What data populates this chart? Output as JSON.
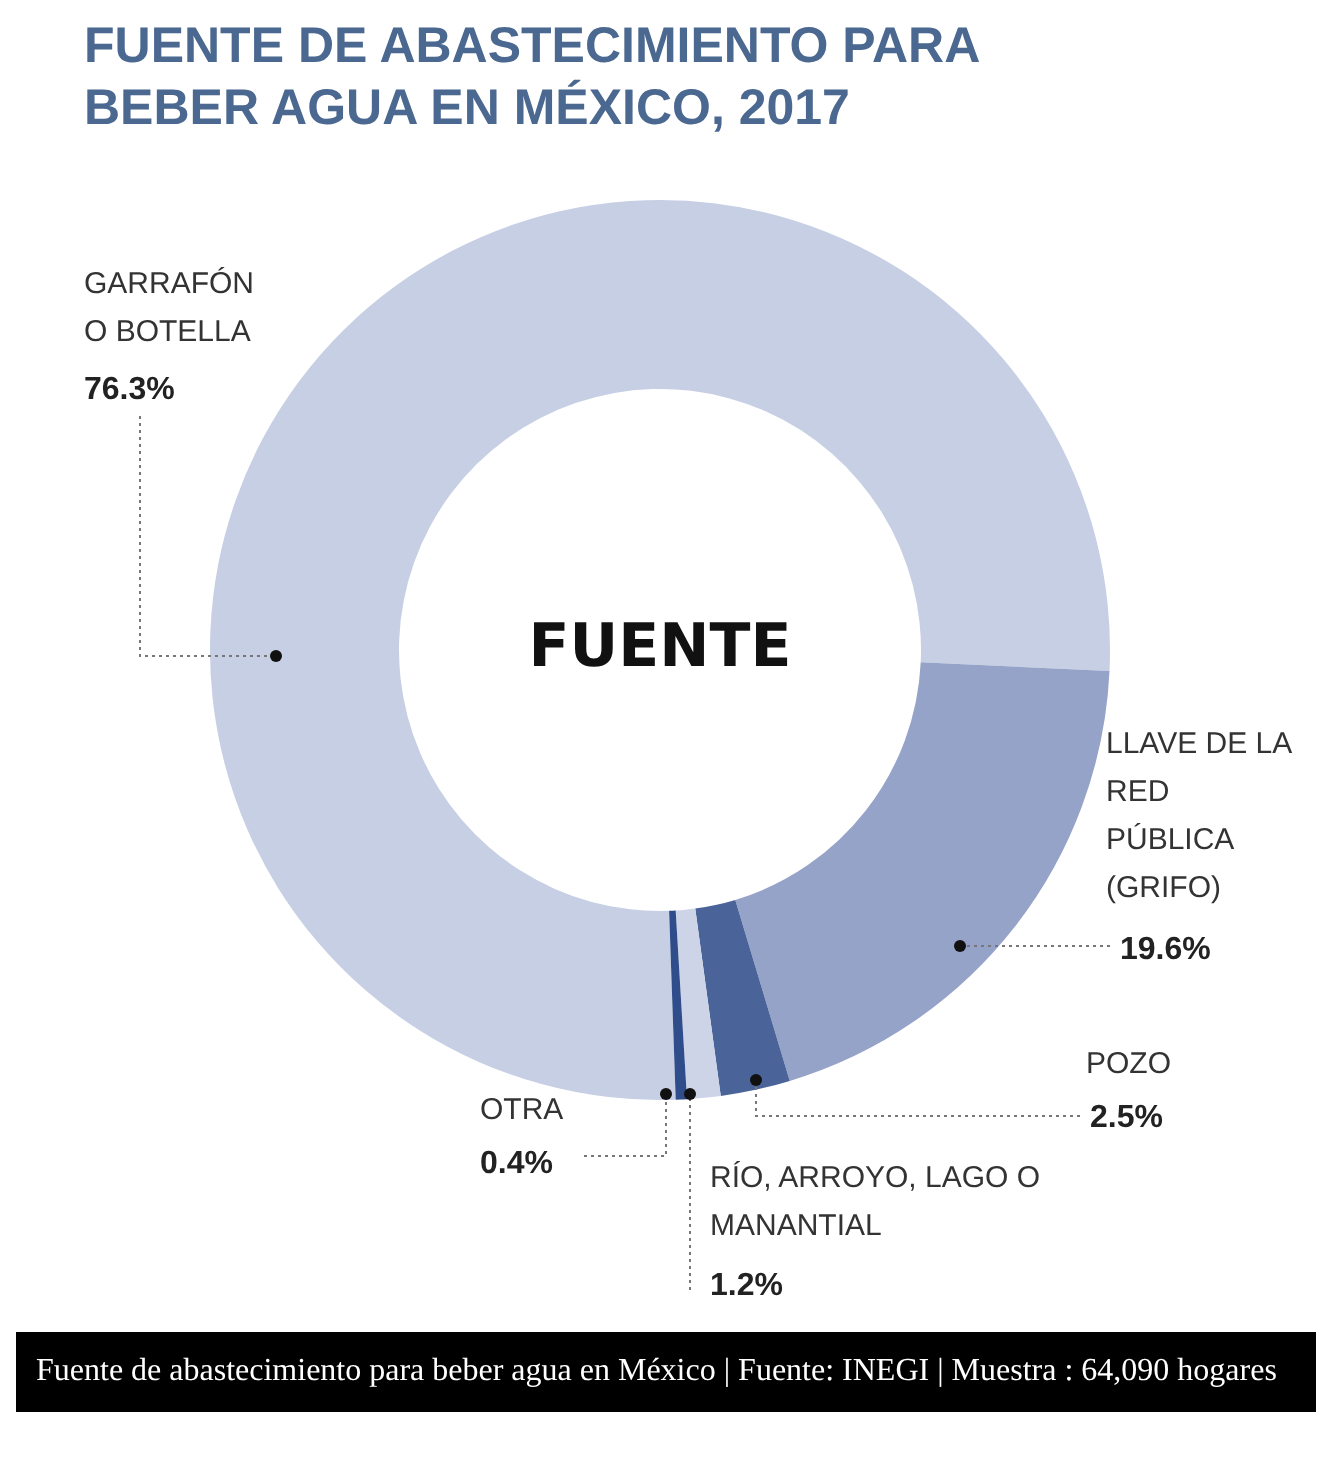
{
  "chart_data": {
    "type": "donut",
    "title": "FUENTE DE ABASTECIMIENTO PARA BEBER AGUA EN MÉXICO, 2017",
    "categories": [
      "GARRAFÓN O BOTELLA",
      "LLAVE DE LA RED PÚBLICA (GRIFO)",
      "POZO",
      "RÍO, ARROYO, LAGO O MANANTIAL",
      "OTRA"
    ],
    "values": [
      76.3,
      19.6,
      2.5,
      1.2,
      0.4
    ],
    "colors": [
      "#c7cfe5",
      "#95a3c8",
      "#4a6399",
      "#cdd4e8",
      "#2e4d8a"
    ],
    "value_labels": [
      "76.3%",
      "19.6%",
      "2.5%",
      "1.2%",
      "0.4%"
    ],
    "annotations": [
      "FUENTE",
      "Fuente de abastecimiento para beber agua en México | Fuente: INEGI | Muestra : 64,090 hogares"
    ],
    "legend": false
  }
}
